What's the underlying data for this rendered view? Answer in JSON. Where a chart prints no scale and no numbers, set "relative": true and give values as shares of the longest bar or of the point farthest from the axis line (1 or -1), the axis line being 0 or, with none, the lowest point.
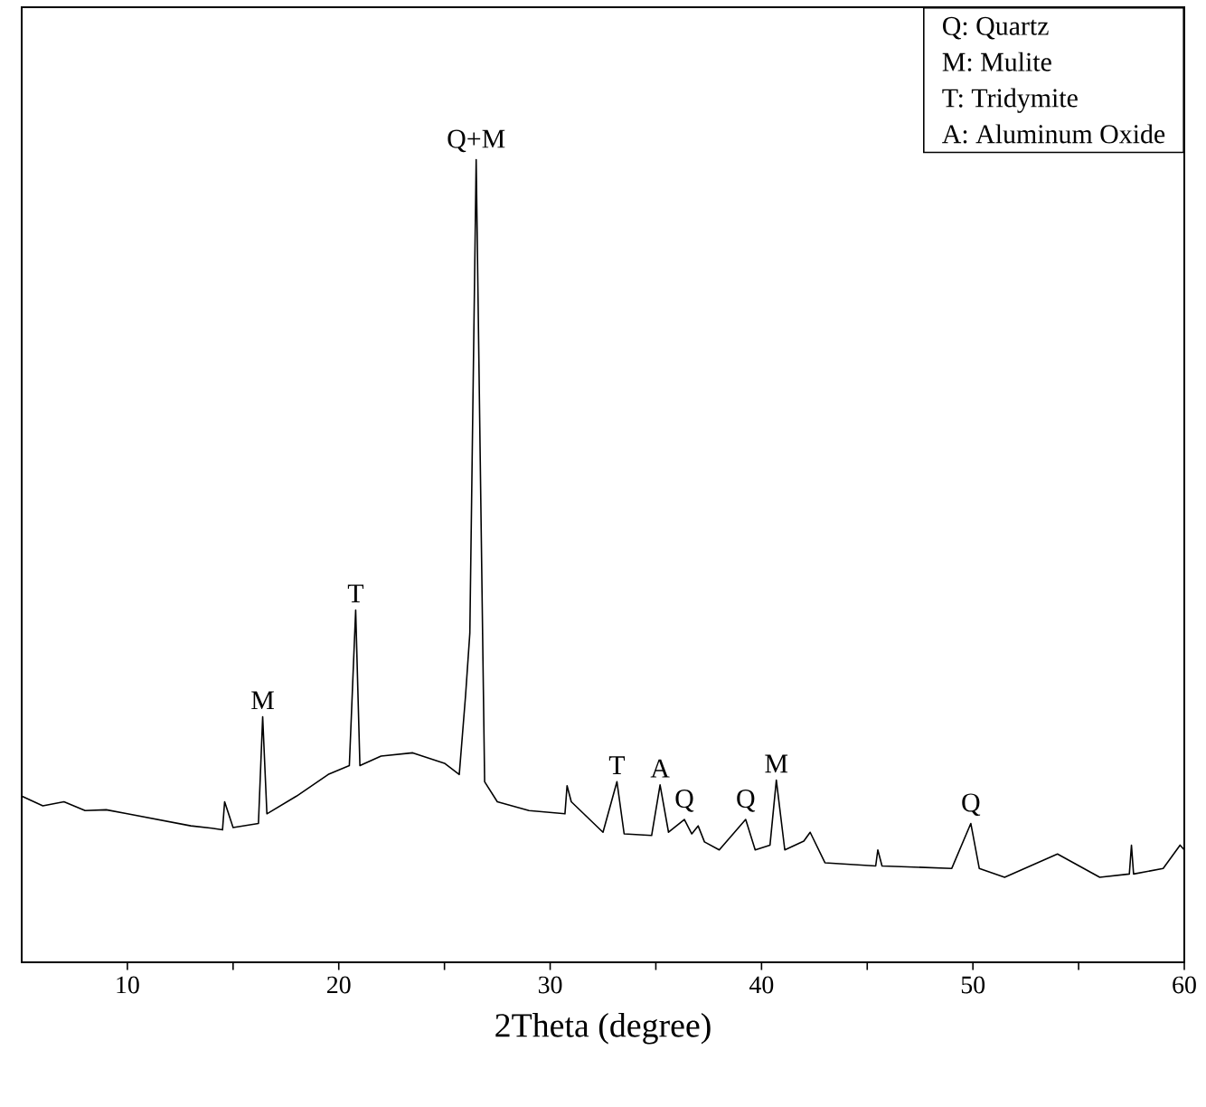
{
  "chart_data": {
    "type": "line",
    "relative": true,
    "xlabel": "2Theta (degree)",
    "xlim": [
      5,
      60
    ],
    "xticks": [
      10,
      {
        "value": 15,
        "label": null
      },
      20,
      {
        "value": 25,
        "label": null
      },
      30,
      {
        "value": 35,
        "label": null
      },
      40,
      {
        "value": 45,
        "label": null
      },
      50,
      {
        "value": 55,
        "label": null
      },
      60
    ],
    "color": "#000000",
    "marker": "none",
    "line_style": "solid",
    "grid": false,
    "x": [
      5,
      6,
      7,
      8,
      9,
      10,
      11,
      12,
      13,
      14,
      14.5,
      14.6,
      15,
      16.2,
      16.4,
      16.6,
      18,
      19.5,
      20.5,
      20.8,
      21.0,
      22,
      23.5,
      25,
      25.7,
      26.0,
      26.2,
      26.5,
      26.9,
      27.5,
      29,
      30.7,
      30.8,
      31,
      32.5,
      33.16,
      33.5,
      34.8,
      35.2,
      35.6,
      36.35,
      36.7,
      37.0,
      37.3,
      38,
      39.25,
      39.7,
      40.4,
      40.7,
      41.1,
      42,
      42.3,
      43,
      45.4,
      45.5,
      45.7,
      49,
      49.9,
      50.3,
      51.5,
      54,
      56,
      57.4,
      57.5,
      57.6,
      59,
      59.8,
      60
    ],
    "values": [
      0.207,
      0.195,
      0.2,
      0.189,
      0.19,
      0.185,
      0.18,
      0.175,
      0.17,
      0.167,
      0.165,
      0.2,
      0.168,
      0.173,
      0.306,
      0.185,
      0.207,
      0.234,
      0.245,
      0.439,
      0.245,
      0.257,
      0.261,
      0.248,
      0.234,
      0.333,
      0.41,
      1.0,
      0.225,
      0.2,
      0.189,
      0.185,
      0.22,
      0.2,
      0.162,
      0.225,
      0.16,
      0.158,
      0.221,
      0.162,
      0.178,
      0.16,
      0.17,
      0.15,
      0.14,
      0.178,
      0.14,
      0.146,
      0.227,
      0.14,
      0.151,
      0.162,
      0.124,
      0.12,
      0.14,
      0.12,
      0.117,
      0.173,
      0.117,
      0.106,
      0.135,
      0.106,
      0.11,
      0.146,
      0.11,
      0.117,
      0.146,
      0.14
    ],
    "annotations": [
      {
        "text": "M",
        "x": 16.4,
        "y": 0.306
      },
      {
        "text": "T",
        "x": 20.8,
        "y": 0.439
      },
      {
        "text": "Q+M",
        "x": 26.5,
        "y": 1.0
      },
      {
        "text": "T",
        "x": 33.16,
        "y": 0.225
      },
      {
        "text": "A",
        "x": 35.2,
        "y": 0.221
      },
      {
        "text": "Q",
        "x": 36.35,
        "y": 0.178
      },
      {
        "text": "Q",
        "x": 39.25,
        "y": 0.178
      },
      {
        "text": "M",
        "x": 40.7,
        "y": 0.227
      },
      {
        "text": "Q",
        "x": 49.9,
        "y": 0.173
      },
      "Q: Quartz",
      "M: Mulite",
      "T: Tridymite",
      "A: Aluminum Oxide"
    ]
  }
}
